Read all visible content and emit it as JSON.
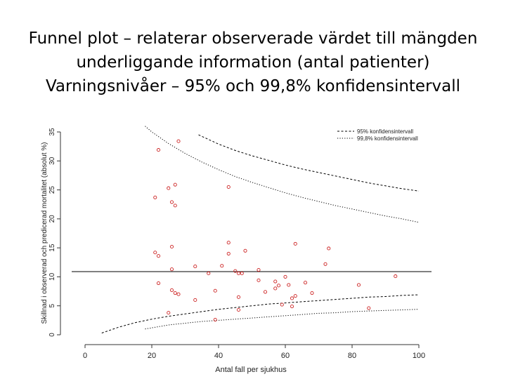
{
  "slide": {
    "title_lines": [
      "Funnel plot – relaterar observerade värdet till mängden",
      "underliggande information (antal patienter)",
      "Varningsnivåer – 95% och 99,8% konfidensintervall"
    ]
  },
  "chart_data": {
    "type": "scatter",
    "title": "",
    "xlabel": "Antal fall per sjukhus",
    "ylabel": "Skillnad i observerad och predicerad mortalitet (absolut %)",
    "xlim": [
      0,
      100
    ],
    "ylim": [
      0,
      35
    ],
    "xticks": [
      0,
      20,
      40,
      60,
      80,
      100
    ],
    "yticks": [
      0,
      5,
      10,
      15,
      20,
      25,
      30,
      35
    ],
    "legend": {
      "position": "top-right",
      "entries": [
        "95% konfidensintervall",
        "99,8% konfidensintervall"
      ]
    },
    "reference_line": 10.9,
    "colors": {
      "points": "#cc2222",
      "lines": "#000000"
    },
    "series": [
      {
        "name": "95% konfidensintervall",
        "line_style": "dashed",
        "upper": [
          [
            34,
            34.5
          ],
          [
            37,
            33.7
          ],
          [
            40,
            32.9
          ],
          [
            45,
            31.8
          ],
          [
            50,
            30.9
          ],
          [
            55,
            30.1
          ],
          [
            60,
            29.3
          ],
          [
            65,
            28.6
          ],
          [
            70,
            28.0
          ],
          [
            75,
            27.4
          ],
          [
            80,
            26.8
          ],
          [
            85,
            26.2
          ],
          [
            90,
            25.7
          ],
          [
            95,
            25.2
          ],
          [
            100,
            24.8
          ]
        ],
        "lower": [
          [
            5,
            0.3
          ],
          [
            10,
            1.3
          ],
          [
            15,
            2.1
          ],
          [
            20,
            2.7
          ],
          [
            25,
            3.2
          ],
          [
            30,
            3.6
          ],
          [
            35,
            4.0
          ],
          [
            40,
            4.4
          ],
          [
            45,
            4.7
          ],
          [
            50,
            5.0
          ],
          [
            55,
            5.3
          ],
          [
            60,
            5.5
          ],
          [
            65,
            5.7
          ],
          [
            70,
            5.9
          ],
          [
            75,
            6.1
          ],
          [
            80,
            6.3
          ],
          [
            85,
            6.5
          ],
          [
            90,
            6.6
          ],
          [
            95,
            6.8
          ],
          [
            100,
            6.9
          ]
        ]
      },
      {
        "name": "99,8% konfidensintervall",
        "line_style": "dotted",
        "upper": [
          [
            18,
            36.0
          ],
          [
            20,
            35.0
          ],
          [
            25,
            33.0
          ],
          [
            30,
            31.3
          ],
          [
            35,
            29.8
          ],
          [
            40,
            28.5
          ],
          [
            45,
            27.3
          ],
          [
            50,
            26.3
          ],
          [
            55,
            25.4
          ],
          [
            60,
            24.5
          ],
          [
            65,
            23.7
          ],
          [
            70,
            23.0
          ],
          [
            75,
            22.3
          ],
          [
            80,
            21.7
          ],
          [
            85,
            21.1
          ],
          [
            90,
            20.5
          ],
          [
            95,
            20.0
          ],
          [
            100,
            19.4
          ]
        ],
        "lower": [
          [
            18,
            1.0
          ],
          [
            20,
            1.2
          ],
          [
            25,
            1.7
          ],
          [
            30,
            2.0
          ],
          [
            35,
            2.3
          ],
          [
            40,
            2.5
          ],
          [
            45,
            2.7
          ],
          [
            50,
            2.9
          ],
          [
            55,
            3.1
          ],
          [
            60,
            3.3
          ],
          [
            65,
            3.5
          ],
          [
            70,
            3.7
          ],
          [
            75,
            3.8
          ],
          [
            80,
            4.0
          ],
          [
            85,
            4.1
          ],
          [
            90,
            4.2
          ],
          [
            95,
            4.3
          ],
          [
            100,
            4.4
          ]
        ]
      }
    ],
    "points": [
      [
        22,
        31.9
      ],
      [
        28,
        33.4
      ],
      [
        25,
        25.3
      ],
      [
        27,
        25.9
      ],
      [
        21,
        23.7
      ],
      [
        26,
        22.9
      ],
      [
        27,
        22.3
      ],
      [
        43,
        25.5
      ],
      [
        21,
        14.2
      ],
      [
        22,
        13.6
      ],
      [
        26,
        15.2
      ],
      [
        26,
        11.3
      ],
      [
        33,
        11.8
      ],
      [
        37,
        10.6
      ],
      [
        41,
        11.9
      ],
      [
        43,
        15.9
      ],
      [
        43,
        14.0
      ],
      [
        45,
        11.0
      ],
      [
        46,
        10.6
      ],
      [
        48,
        14.5
      ],
      [
        52,
        11.2
      ],
      [
        63,
        15.7
      ],
      [
        73,
        14.9
      ],
      [
        72,
        12.2
      ],
      [
        22,
        8.9
      ],
      [
        26,
        7.7
      ],
      [
        27,
        7.2
      ],
      [
        28,
        7.0
      ],
      [
        33,
        6.0
      ],
      [
        39,
        7.6
      ],
      [
        46,
        6.5
      ],
      [
        47,
        10.6
      ],
      [
        52,
        9.4
      ],
      [
        54,
        7.4
      ],
      [
        57,
        8.0
      ],
      [
        58,
        8.5
      ],
      [
        60,
        10.0
      ],
      [
        61,
        8.6
      ],
      [
        62,
        6.3
      ],
      [
        63,
        6.7
      ],
      [
        66,
        9.0
      ],
      [
        68,
        7.2
      ],
      [
        82,
        8.6
      ],
      [
        93,
        10.1
      ],
      [
        25,
        3.8
      ],
      [
        46,
        4.3
      ],
      [
        39,
        2.6
      ],
      [
        59,
        5.2
      ],
      [
        62,
        4.9
      ],
      [
        85,
        4.6
      ],
      [
        57,
        9.2
      ]
    ]
  }
}
